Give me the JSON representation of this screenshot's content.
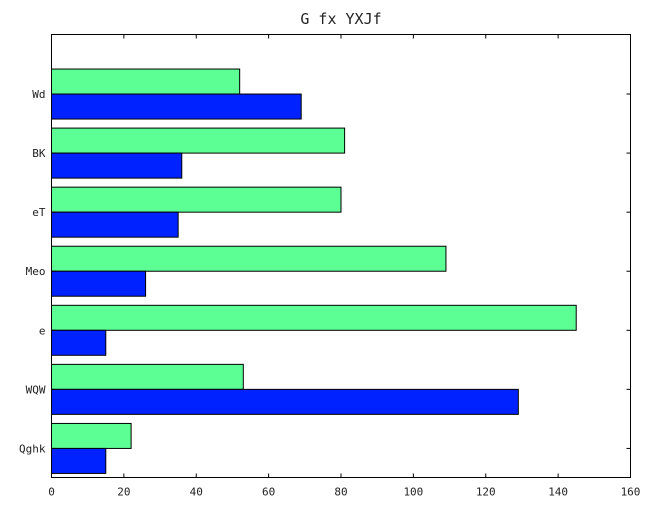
{
  "chart_data": {
    "type": "bar",
    "orientation": "horizontal",
    "title": "G fx YXJf",
    "categories": [
      "Qghk",
      "WQW",
      "e",
      "Meo",
      "eT",
      "BK",
      "Wd"
    ],
    "series": [
      {
        "color": "#0022ff",
        "values": [
          15,
          129,
          15,
          26,
          35,
          36,
          69
        ]
      },
      {
        "color": "#5cff94",
        "values": [
          22,
          53,
          145,
          109,
          80,
          81,
          52
        ]
      }
    ],
    "xlim": [
      0,
      160
    ],
    "xticks": [
      0,
      20,
      40,
      60,
      80,
      100,
      120,
      140,
      160
    ],
    "grid": false
  }
}
